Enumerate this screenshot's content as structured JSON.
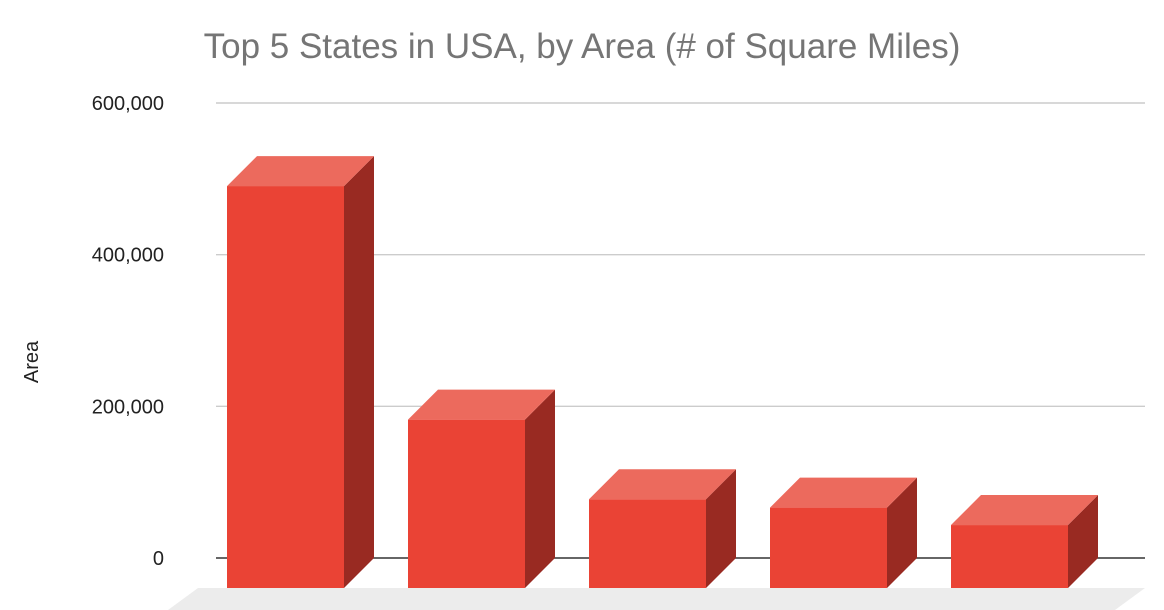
{
  "colors": {
    "bar_front": "#ea4335",
    "bar_top": "#ec6a5d",
    "bar_side": "#992a22",
    "gridline": "#cccccc",
    "title": "#757575",
    "text": "#222222"
  },
  "chart_data": {
    "type": "bar",
    "title": "Top 5 States in USA, by Area (# of Square Miles)",
    "xlabel": "",
    "ylabel": "Area",
    "categories": [
      "",
      "",
      "",
      "",
      ""
    ],
    "series": [
      {
        "values": [
          530000,
          222000,
          117000,
          106000,
          83000
        ]
      }
    ],
    "ylim": [
      0,
      600000
    ],
    "yticks": [
      0,
      200000,
      400000,
      600000
    ],
    "ytick_labels": [
      "0",
      "200,000",
      "400,000",
      "600,000"
    ],
    "grid": true,
    "legend": "none",
    "style": "3d"
  }
}
